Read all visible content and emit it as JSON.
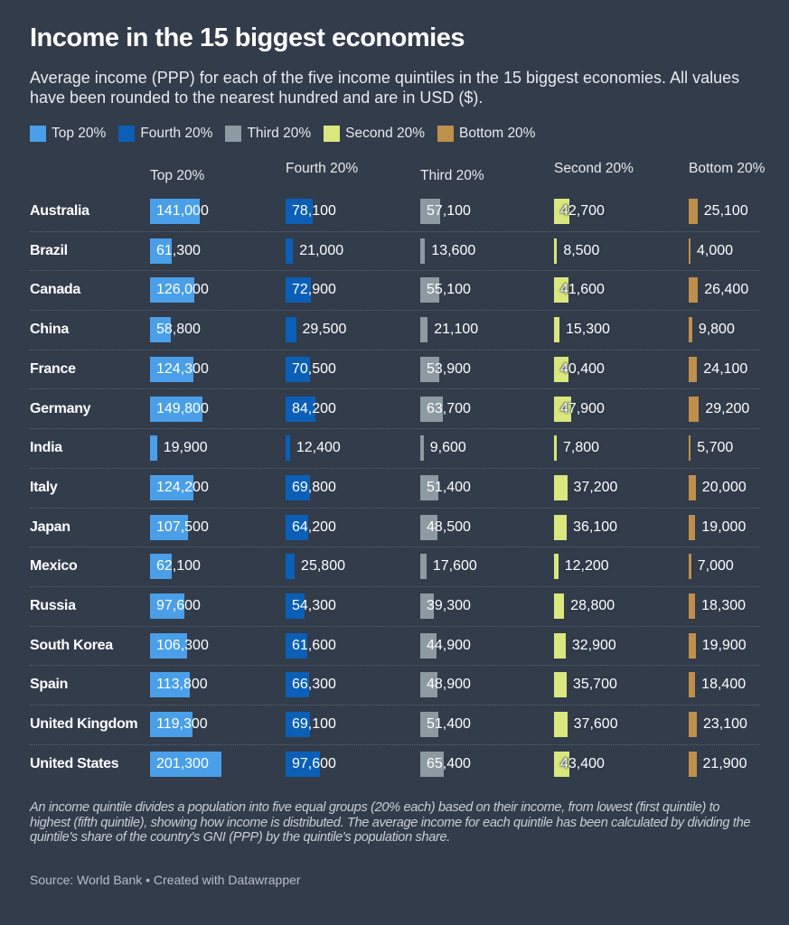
{
  "header": {
    "title": "Income in the 15 biggest economies",
    "subtitle": "Average income (PPP) for each of the five income quintiles in the 15 biggest economies. All values have been rounded to the nearest hundred and are in USD ($)."
  },
  "chart_data": {
    "type": "table",
    "columns": [
      {
        "label": "Top 20%",
        "header": "Top 20%",
        "color": "#4a9fe8"
      },
      {
        "label": "Fourth 20%",
        "header": "Fourth 20%",
        "color": "#0b5fb6"
      },
      {
        "label": "Third 20%",
        "header": "Third 20%",
        "color": "#8d9aa1"
      },
      {
        "label": "Second 20%",
        "header": "Second 20%",
        "color": "#dae67e"
      },
      {
        "label": "Bottom 20%",
        "header": "Bottom 20%",
        "color": "#bf904b"
      }
    ],
    "rows": [
      {
        "country": "Australia",
        "values": [
          141000,
          78100,
          57100,
          42700,
          25100
        ]
      },
      {
        "country": "Brazil",
        "values": [
          61300,
          21000,
          13600,
          8500,
          4000
        ]
      },
      {
        "country": "Canada",
        "values": [
          126000,
          72900,
          55100,
          41600,
          26400
        ]
      },
      {
        "country": "China",
        "values": [
          58800,
          29500,
          21100,
          15300,
          9800
        ]
      },
      {
        "country": "France",
        "values": [
          124300,
          70500,
          53900,
          40400,
          24100
        ]
      },
      {
        "country": "Germany",
        "values": [
          149800,
          84200,
          63700,
          47900,
          29200
        ]
      },
      {
        "country": "India",
        "values": [
          19900,
          12400,
          9600,
          7800,
          5700
        ]
      },
      {
        "country": "Italy",
        "values": [
          124200,
          69800,
          51400,
          37200,
          20000
        ]
      },
      {
        "country": "Japan",
        "values": [
          107500,
          64200,
          48500,
          36100,
          19000
        ]
      },
      {
        "country": "Mexico",
        "values": [
          62100,
          25800,
          17600,
          12200,
          7000
        ]
      },
      {
        "country": "Russia",
        "values": [
          97600,
          54300,
          39300,
          28800,
          18300
        ]
      },
      {
        "country": "South Korea",
        "values": [
          106300,
          61600,
          44900,
          32900,
          19900
        ]
      },
      {
        "country": "Spain",
        "values": [
          113800,
          66300,
          48900,
          35700,
          18400
        ]
      },
      {
        "country": "United Kingdom",
        "values": [
          119300,
          69100,
          51400,
          37600,
          23100
        ]
      },
      {
        "country": "United States",
        "values": [
          201300,
          97600,
          65400,
          43400,
          21900
        ]
      }
    ]
  },
  "footer": {
    "note": "An income quintile divides a population into five equal groups (20% each) based on their income, from lowest (first quintile) to highest (fifth quintile), showing how income is distributed. The average income for each quintile has been calculated by dividing the quintile's share of the country's GNI (PPP) by the quintile's population share.",
    "source": "Source: World Bank • Created with Datawrapper"
  }
}
